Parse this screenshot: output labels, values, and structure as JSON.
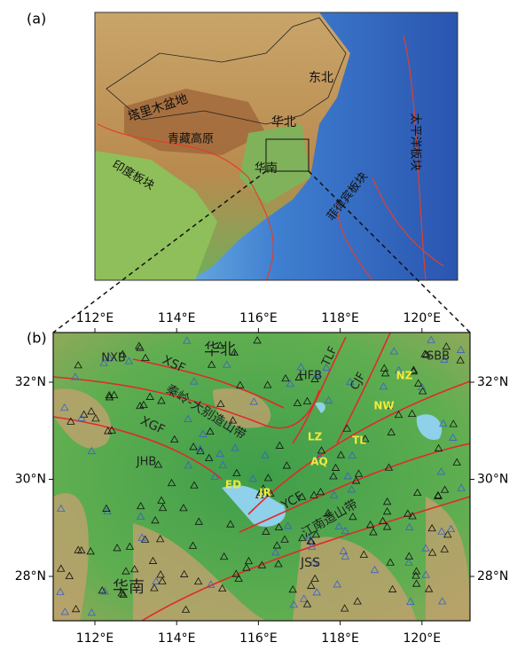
{
  "panel_a": {
    "label": "(a)",
    "regions": [
      "东北",
      "塔里木盆地",
      "华北",
      "青藏高原",
      "华南",
      "印度板块",
      "菲律宾板块",
      "太平洋板块"
    ]
  },
  "panel_b": {
    "label": "(b)",
    "xticks": [
      {
        "value": 112,
        "label": "112°E"
      },
      {
        "value": 114,
        "label": "114°E"
      },
      {
        "value": 116,
        "label": "116°E"
      },
      {
        "value": 118,
        "label": "118°E"
      },
      {
        "value": 120,
        "label": "120°E"
      }
    ],
    "yticks": [
      {
        "value": 32,
        "label": "32°N"
      },
      {
        "value": 30,
        "label": "30°N"
      },
      {
        "value": 28,
        "label": "28°N"
      }
    ],
    "features": [
      "NXB",
      "XSF",
      "华北",
      "TLF",
      "HFB",
      "CJF",
      "SBB",
      "NZ",
      "NW",
      "秦岭-大别造山带",
      "XGF",
      "LZ",
      "TL",
      "JHB",
      "AQ",
      "ED",
      "JR",
      "YCF",
      "江南造山带",
      "JSS",
      "华南"
    ]
  }
}
